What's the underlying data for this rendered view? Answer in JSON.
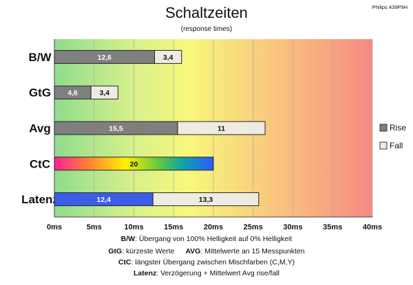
{
  "header": {
    "title": "Schaltzeiten",
    "subtitle": "(response times)",
    "model": "Philips 439P9H"
  },
  "chart_data": {
    "type": "bar",
    "orientation": "horizontal",
    "stacked": true,
    "categories": [
      "B/W",
      "GtG",
      "Avg",
      "CtC",
      "Latenz"
    ],
    "series": [
      {
        "name": "Rise",
        "color": "#7f7f7f",
        "values": [
          12.6,
          4.6,
          15.5,
          null,
          null
        ]
      },
      {
        "name": "Fall",
        "color": "#eeece1",
        "values": [
          3.4,
          3.4,
          11,
          null,
          13.3
        ]
      }
    ],
    "special_bars": [
      {
        "category": "CtC",
        "value": 20,
        "label": "20",
        "fill": "rainbow"
      },
      {
        "category": "Latenz",
        "value": 12.4,
        "label": "12,4",
        "fill": "#3c5ee6"
      }
    ],
    "value_labels": {
      "B/W": [
        "12,6",
        "3,4"
      ],
      "GtG": [
        "4,6",
        "3,4"
      ],
      "Avg": [
        "15,5",
        "11"
      ],
      "CtC": [
        "20"
      ],
      "Latenz": [
        "12,4",
        "13,3"
      ]
    },
    "xlim": [
      0,
      40
    ],
    "xticks": [
      "0ms",
      "5ms",
      "10ms",
      "15ms",
      "20ms",
      "25ms",
      "30ms",
      "35ms",
      "40ms"
    ],
    "xtick_values": [
      0,
      5,
      10,
      15,
      20,
      25,
      30,
      35,
      40
    ],
    "background": "green-yellow-red gradient",
    "grid": true,
    "legend": {
      "position": "right",
      "entries": [
        {
          "label": "Rise",
          "color": "#7f7f7f"
        },
        {
          "label": "Fall",
          "color": "#eeece1"
        }
      ]
    }
  },
  "captions": [
    {
      "parts": [
        {
          "bold": "B/W"
        },
        {
          "text": ":  Übergang von 100% Helligkeit auf 0% Helligkeit"
        }
      ]
    },
    {
      "parts": [
        {
          "bold": "GtG"
        },
        {
          "text": ": kürzeste  Werte"
        },
        {
          "gap": true
        },
        {
          "bold": "AVG"
        },
        {
          "text": ": Mittelwerte  an 15 Messpunkten"
        }
      ]
    },
    {
      "parts": [
        {
          "bold": "CtC"
        },
        {
          "text": ": längster Übergang  zwischen Mischfarben (C,M,Y)"
        }
      ]
    },
    {
      "parts": [
        {
          "bold": "Latenz"
        },
        {
          "text": ": Verzögerung  + Mittelwert Avg rise/fall"
        }
      ]
    }
  ]
}
